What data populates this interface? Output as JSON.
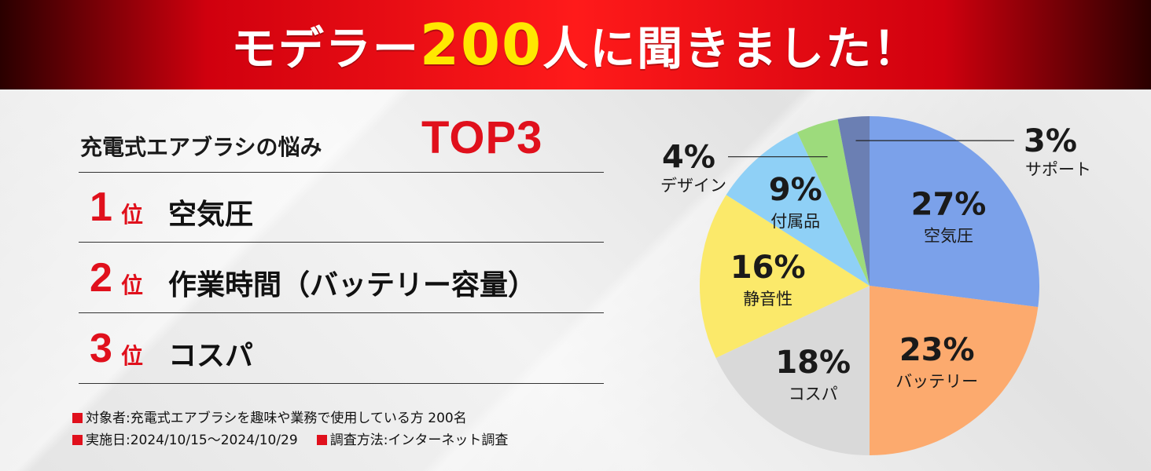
{
  "banner": {
    "prefix": "モデラー",
    "number": "200",
    "suffix": "人に聞きました！"
  },
  "ranking": {
    "heading": "充電式エアブラシの悩み",
    "heading_emph": "TOP3",
    "items": [
      {
        "rank": "1",
        "suffix": "位",
        "label": "空気圧"
      },
      {
        "rank": "2",
        "suffix": "位",
        "label": "作業時間（バッテリー容量）"
      },
      {
        "rank": "3",
        "suffix": "位",
        "label": "コスパ"
      }
    ]
  },
  "footnotes": {
    "line1": "対象者:充電式エアブラシを趣味や業務で使用している方 200名",
    "line2a": "実施日:2024/10/15〜2024/10/29",
    "line2b": "調査方法:インターネット調査"
  },
  "colors": {
    "accent": "#e0101c",
    "highlight": "#ffe800"
  },
  "chart_data": {
    "type": "pie",
    "slices": [
      {
        "label": "空気圧",
        "pct": "27%",
        "value": 27,
        "color": "#7ba1ea"
      },
      {
        "label": "バッテリー",
        "pct": "23%",
        "value": 23,
        "color": "#fcaa6e"
      },
      {
        "label": "コスパ",
        "pct": "18%",
        "value": 18,
        "color": "#d9d9d9"
      },
      {
        "label": "静音性",
        "pct": "16%",
        "value": 16,
        "color": "#fbe96a"
      },
      {
        "label": "付属品",
        "pct": "9%",
        "value": 9,
        "color": "#8fd0f6"
      },
      {
        "label": "デザイン",
        "pct": "4%",
        "value": 4,
        "color": "#9ddb7c"
      },
      {
        "label": "サポート",
        "pct": "3%",
        "value": 3,
        "color": "#6b7fb3"
      }
    ]
  }
}
